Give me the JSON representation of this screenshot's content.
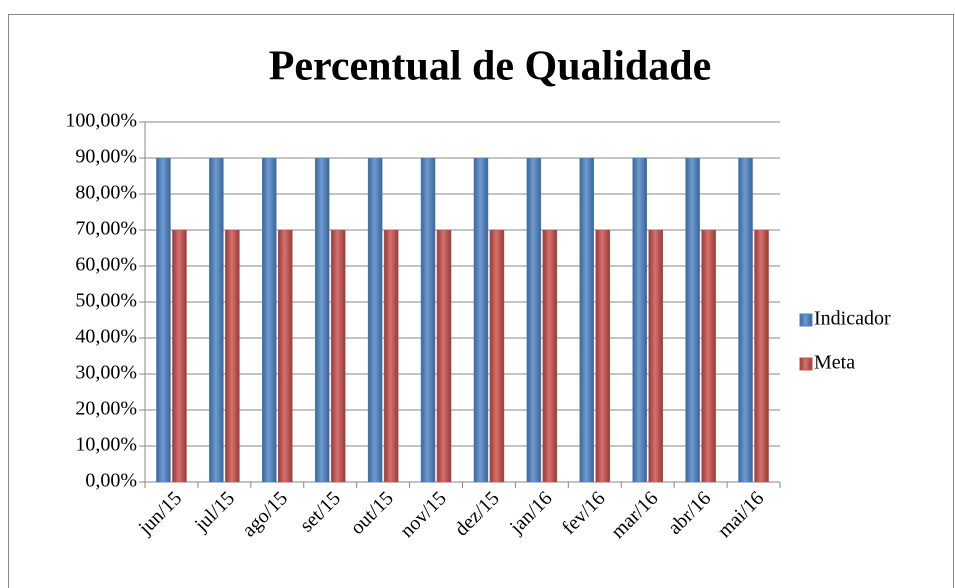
{
  "chart_data": {
    "type": "bar",
    "title": "Percentual de Qualidade",
    "categories": [
      "jun/15",
      "jul/15",
      "ago/15",
      "set/15",
      "out/15",
      "nov/15",
      "dez/15",
      "jan/16",
      "fev/16",
      "mar/16",
      "abr/16",
      "mai/16"
    ],
    "series": [
      {
        "name": "Indicador",
        "color": "#4f81bd",
        "values": [
          90,
          90,
          90,
          90,
          90,
          90,
          90,
          90,
          90,
          90,
          90,
          90
        ]
      },
      {
        "name": "Meta",
        "color": "#c0504d",
        "values": [
          70,
          70,
          70,
          70,
          70,
          70,
          70,
          70,
          70,
          70,
          70,
          70
        ]
      }
    ],
    "ylim": [
      0,
      100
    ],
    "yticks": [
      {
        "value": 0,
        "label": "0,00%"
      },
      {
        "value": 10,
        "label": "10,00%"
      },
      {
        "value": 20,
        "label": "20,00%"
      },
      {
        "value": 30,
        "label": "30,00%"
      },
      {
        "value": 40,
        "label": "40,00%"
      },
      {
        "value": 50,
        "label": "50,00%"
      },
      {
        "value": 60,
        "label": "60,00%"
      },
      {
        "value": 70,
        "label": "70,00%"
      },
      {
        "value": 80,
        "label": "80,00%"
      },
      {
        "value": 90,
        "label": "90,00%"
      },
      {
        "value": 100,
        "label": "100,00%"
      }
    ],
    "grid": true,
    "legend": "right"
  }
}
